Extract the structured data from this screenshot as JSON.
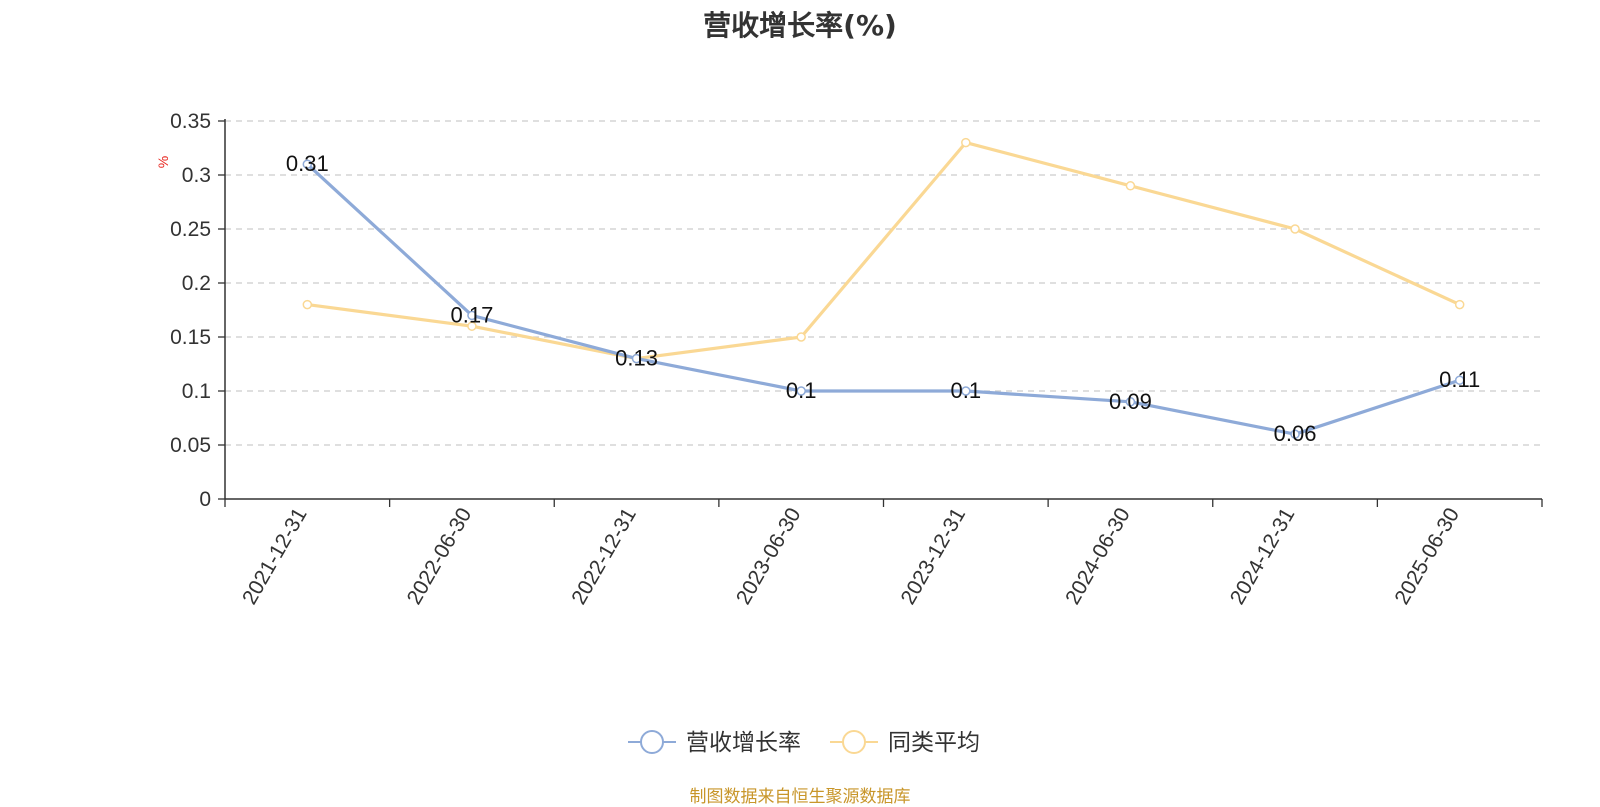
{
  "title": "营收增长率(%)",
  "footer": {
    "source": "制图数据来自恒生聚源数据库"
  },
  "chart_data": {
    "type": "line",
    "title": "营收增长率(%)",
    "ylabel": "%",
    "xlabel": "",
    "ylim": [
      0,
      0.35
    ],
    "yticks": [
      0,
      0.05,
      0.1,
      0.15,
      0.2,
      0.25,
      0.3,
      0.35
    ],
    "ytick_labels": [
      "0",
      "0.05",
      "0.1",
      "0.15",
      "0.2",
      "0.25",
      "0.3",
      "0.35"
    ],
    "grid": true,
    "legend": "bottom-center",
    "categories": [
      "2021-12-31",
      "2022-06-30",
      "2022-12-31",
      "2023-06-30",
      "2023-12-31",
      "2024-06-30",
      "2024-12-31",
      "2025-06-30"
    ],
    "series": [
      {
        "name": "营收增长率",
        "color": "#8eaad8",
        "values": [
          0.31,
          0.17,
          0.13,
          0.1,
          0.1,
          0.09,
          0.06,
          0.11
        ],
        "labels": [
          "0.31",
          "0.17",
          "0.13",
          "0.1",
          "0.1",
          "0.09",
          "0.06",
          "0.11"
        ]
      },
      {
        "name": "同类平均",
        "color": "#fad894",
        "values": [
          0.18,
          0.16,
          0.13,
          0.15,
          0.33,
          0.29,
          0.25,
          0.18
        ]
      }
    ]
  }
}
